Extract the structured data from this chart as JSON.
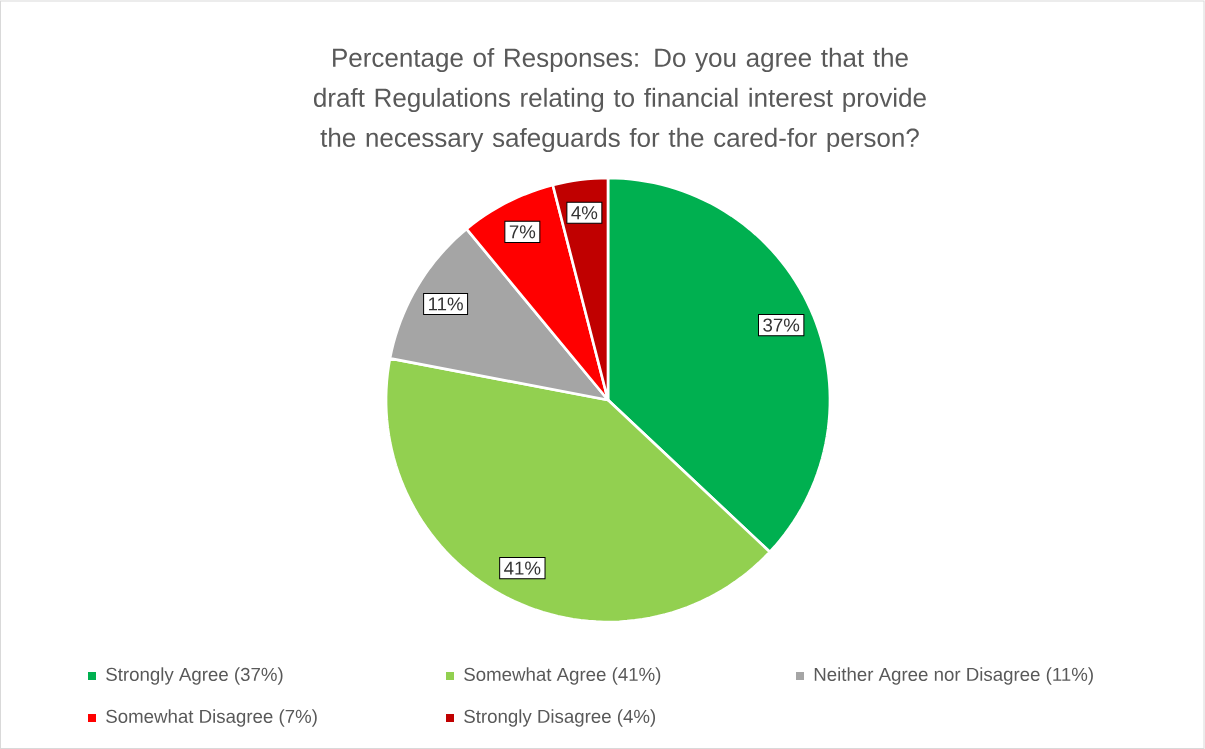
{
  "chart_data": {
    "type": "pie",
    "title": "Percentage of Responses: Do you agree that the draft Regulations relating to financial interest provide the necessary safeguards for the cared-for person?",
    "categories": [
      "Strongly Agree (37%)",
      "Somewhat Agree (41%)",
      "Neither Agree nor Disagree (11%)",
      "Somewhat Disagree (7%)",
      "Strongly Disagree (4%)"
    ],
    "values": [
      37,
      41,
      11,
      7,
      4
    ],
    "colors": [
      "#00b050",
      "#92d050",
      "#a5a5a5",
      "#ff0000",
      "#c00000"
    ],
    "value_labels": [
      "37%",
      "41%",
      "11%",
      "7%",
      "4%"
    ],
    "legend": "bottom"
  }
}
